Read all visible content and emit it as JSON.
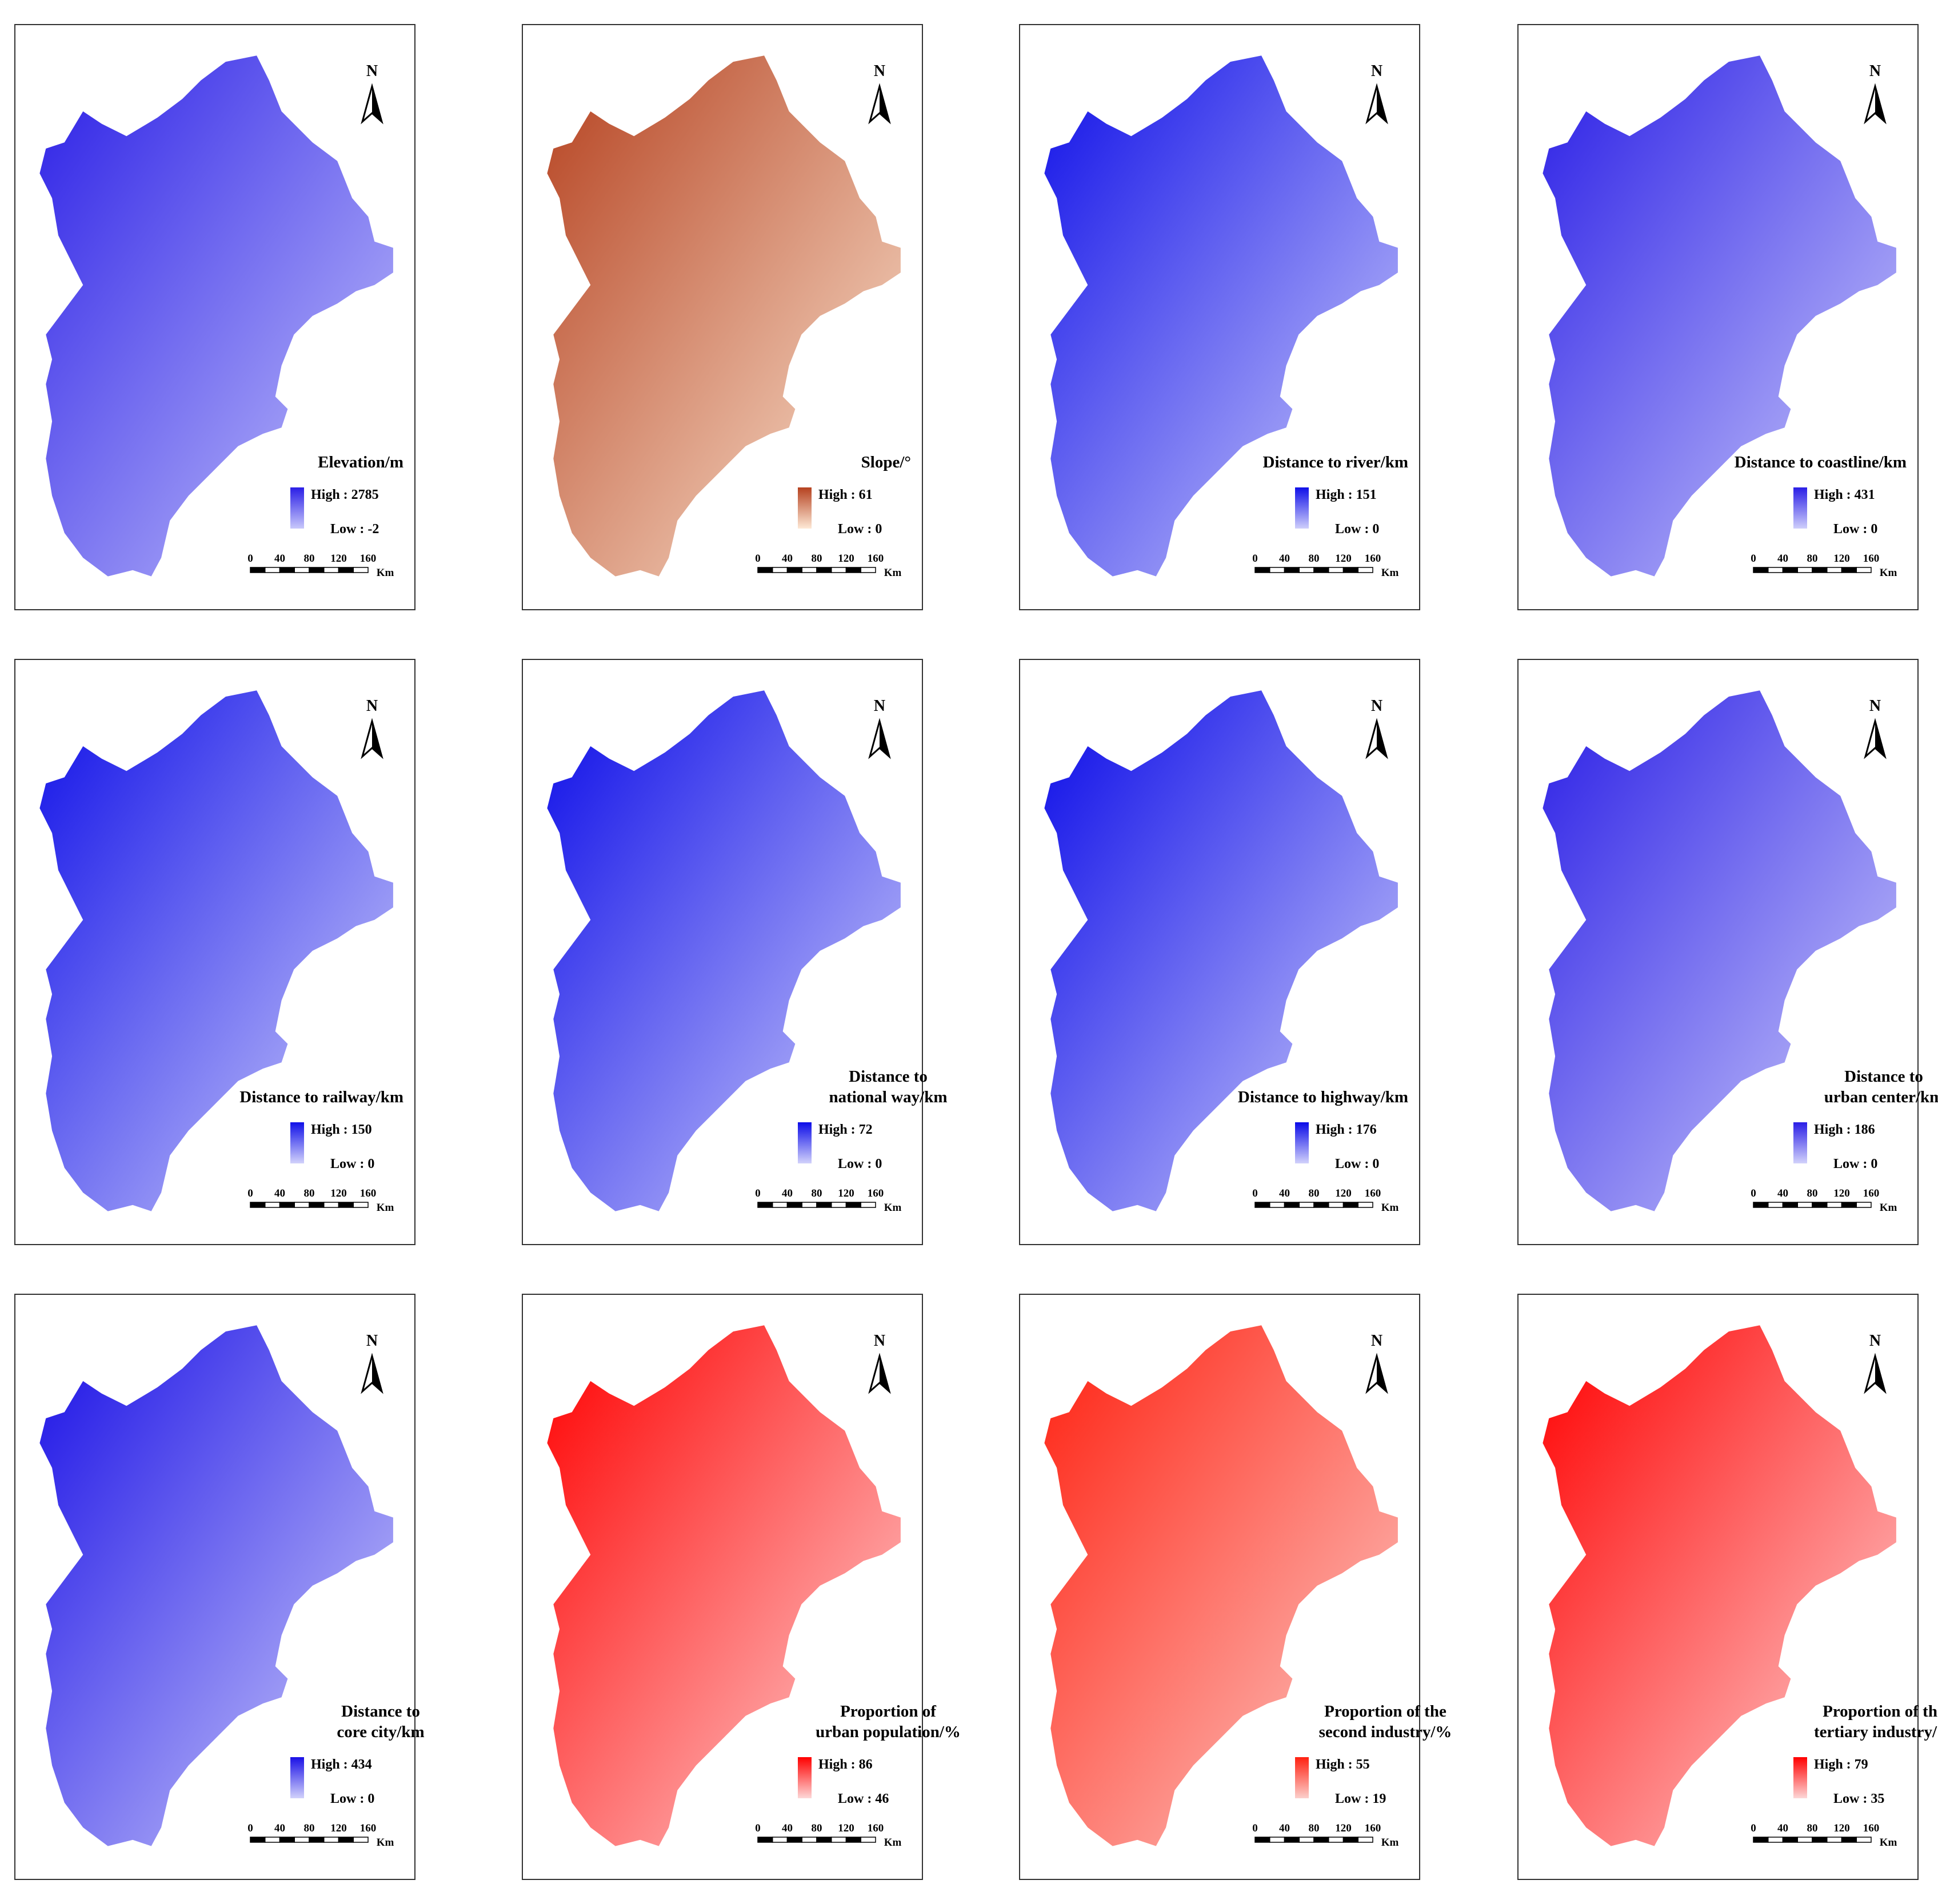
{
  "north": "N",
  "scale": {
    "ticks": [
      "0",
      "40",
      "80",
      "120",
      "160"
    ],
    "unit": "Km"
  },
  "panels": [
    {
      "title": [
        "Elevation/m"
      ],
      "high": "High : 2785",
      "low": "Low : -2",
      "color_high": "#2a1ee6",
      "color_low": "#c8c8fb"
    },
    {
      "title": [
        "Slope/°"
      ],
      "high": "High : 61",
      "low": "Low : 0",
      "color_high": "#b5411f",
      "color_low": "#fde9d6"
    },
    {
      "title": [
        "Distance to river/km"
      ],
      "high": "High : 151",
      "low": "Low : 0",
      "color_high": "#1010e8",
      "color_low": "#cfcffb"
    },
    {
      "title": [
        "Distance to coastline/km"
      ],
      "high": "High : 431",
      "low": "Low : 0",
      "color_high": "#2a1ee6",
      "color_low": "#cfcffb"
    },
    {
      "title": [
        "Distance to railway/km"
      ],
      "high": "High : 150",
      "low": "Low : 0",
      "color_high": "#1010e8",
      "color_low": "#d2d2fb"
    },
    {
      "title": [
        "Distance to",
        "national way/km"
      ],
      "high": "High : 72",
      "low": "Low : 0",
      "color_high": "#0c0ce8",
      "color_low": "#d2d2fb"
    },
    {
      "title": [
        "Distance to highway/km"
      ],
      "high": "High : 176",
      "low": "Low : 0",
      "color_high": "#0a0ae8",
      "color_low": "#d2d2fb"
    },
    {
      "title": [
        "Distance to",
        "urban center/km"
      ],
      "high": "High : 186",
      "low": "Low : 0",
      "color_high": "#2a1ee6",
      "color_low": "#d2d2fb"
    },
    {
      "title": [
        "Distance to",
        "core city/km"
      ],
      "high": "High : 434",
      "low": "Low : 0",
      "color_high": "#1a10e6",
      "color_low": "#d2d2fb"
    },
    {
      "title": [
        "Proportion of",
        "urban population/%"
      ],
      "high": "High : 86",
      "low": "Low : 46",
      "color_high": "#ff0000",
      "color_low": "#fdd8d8"
    },
    {
      "title": [
        "Proportion of the",
        "second industry/%"
      ],
      "high": "High : 55",
      "low": "Low : 19",
      "color_high": "#ff2010",
      "color_low": "#fcd0cc"
    },
    {
      "title": [
        "Proportion of the",
        "tertiary industry/%"
      ],
      "high": "High : 79",
      "low": "Low : 35",
      "color_high": "#ff0000",
      "color_low": "#fdd8d8"
    }
  ]
}
